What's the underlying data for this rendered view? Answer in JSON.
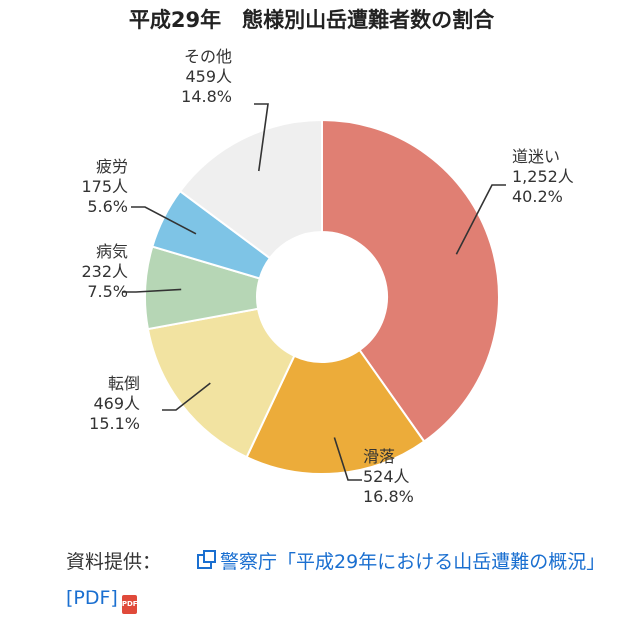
{
  "chart_data": {
    "type": "pie",
    "title": "平成29年　態様別山岳遭難者数の割合",
    "slices": [
      {
        "name": "道迷い",
        "count": "1,252人",
        "percent": 40.2,
        "percent_label": "40.2%",
        "color": "#e07f73"
      },
      {
        "name": "滑落",
        "count": "524人",
        "percent": 16.8,
        "percent_label": "16.8%",
        "color": "#ecac3a"
      },
      {
        "name": "転倒",
        "count": "469人",
        "percent": 15.1,
        "percent_label": "15.1%",
        "color": "#f2e3a1"
      },
      {
        "name": "病気",
        "count": "232人",
        "percent": 7.5,
        "percent_label": "7.5%",
        "color": "#b6d6b5"
      },
      {
        "name": "疲労",
        "count": "175人",
        "percent": 5.6,
        "percent_label": "5.6%",
        "color": "#7ec4e6"
      },
      {
        "name": "その他",
        "count": "459人",
        "percent": 14.8,
        "percent_label": "14.8%",
        "color": "#efefef"
      }
    ]
  },
  "source": {
    "label": "資料提供：",
    "link_text": "警察庁「平成29年における山岳遭難の概況」[PDF]",
    "pdf_badge": "PDF",
    "link_icon": "external-link-icon"
  }
}
